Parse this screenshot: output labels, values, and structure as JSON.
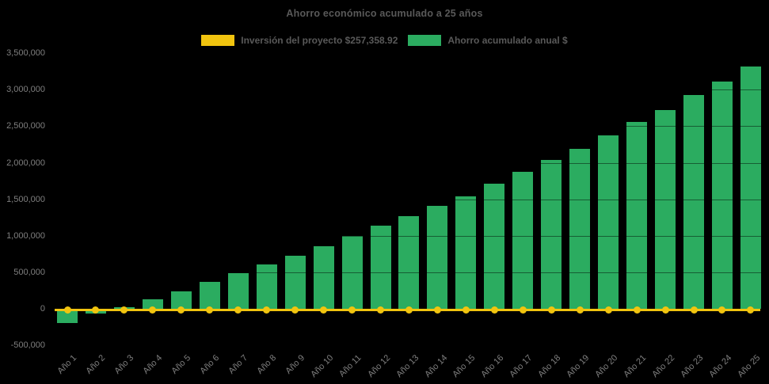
{
  "title": "Ahorro económico acumulado a 25 años",
  "colors": {
    "background": "#000000",
    "investment_line": "#f1c40f",
    "savings_bar": "#2bac60",
    "title_text": "#595959",
    "tick_text": "#7f7f7f"
  },
  "chart_data": {
    "type": "bar",
    "title": "Ahorro económico acumulado a 25 años",
    "categories": [
      "Año 1",
      "Año 2",
      "Año 3",
      "Año 4",
      "Año 5",
      "Año 6",
      "Año 7",
      "Año 8",
      "Año 9",
      "Año 10",
      "Año 11",
      "Año 12",
      "Año 13",
      "Año 14",
      "Año 15",
      "Año 16",
      "Año 17",
      "Año 18",
      "Año 19",
      "Año 20",
      "Año 21",
      "Año 22",
      "Año 23",
      "Año 24",
      "Año 25"
    ],
    "series": [
      {
        "name": "Inversión del proyecto $257,358.92",
        "type": "line",
        "color": "#f1c40f",
        "marker": "circle",
        "values": [
          0,
          0,
          0,
          0,
          0,
          0,
          0,
          0,
          0,
          0,
          0,
          0,
          0,
          0,
          0,
          0,
          0,
          0,
          0,
          0,
          0,
          0,
          0,
          0,
          0
        ]
      },
      {
        "name": "Ahorro acumulado anual $",
        "type": "bar",
        "color": "#2bac60",
        "values": [
          -195000,
          -70000,
          25000,
          130000,
          240000,
          365000,
          485000,
          610000,
          725000,
          855000,
          1000000,
          1135000,
          1270000,
          1405000,
          1540000,
          1710000,
          1870000,
          2035000,
          2195000,
          2370000,
          2555000,
          2725000,
          2925000,
          3115000,
          3315000
        ]
      }
    ],
    "ylim": [
      -500000,
      3500000
    ],
    "ytick_step": 500000,
    "yticks": [
      {
        "value": 3500000,
        "label": "3,500,000"
      },
      {
        "value": 3000000,
        "label": "3,000,000"
      },
      {
        "value": 2500000,
        "label": "2,500,000"
      },
      {
        "value": 2000000,
        "label": "2,000,000"
      },
      {
        "value": 1500000,
        "label": "1,500,000"
      },
      {
        "value": 1000000,
        "label": "1,000,000"
      },
      {
        "value": 500000,
        "label": "500,000"
      },
      {
        "value": 0,
        "label": "0"
      },
      {
        "value": -500000,
        "label": "-500,000"
      }
    ],
    "grid": "horizontal-faint",
    "legend_position": "top-center",
    "xlabel": "",
    "ylabel": ""
  }
}
